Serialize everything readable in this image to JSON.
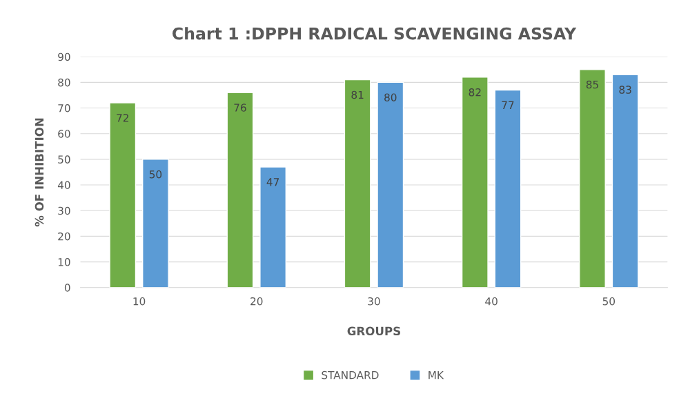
{
  "chart_data": {
    "type": "bar",
    "title": "Chart 1 :DPPH RADICAL SCAVENGING ASSAY",
    "xlabel": "GROUPS",
    "ylabel": "% OF INHIBITION",
    "categories": [
      "10",
      "20",
      "30",
      "40",
      "50"
    ],
    "series": [
      {
        "name": "STANDARD",
        "color": "#70ad47",
        "values": [
          72,
          76,
          81,
          82,
          85
        ]
      },
      {
        "name": "MK",
        "color": "#5b9bd5",
        "values": [
          50,
          47,
          80,
          77,
          83
        ]
      }
    ],
    "ylim": [
      0,
      90
    ],
    "yticks": [
      0,
      10,
      20,
      30,
      40,
      50,
      60,
      70,
      80,
      90
    ],
    "grid": "y",
    "legend": "bottom",
    "data_labels": true
  }
}
